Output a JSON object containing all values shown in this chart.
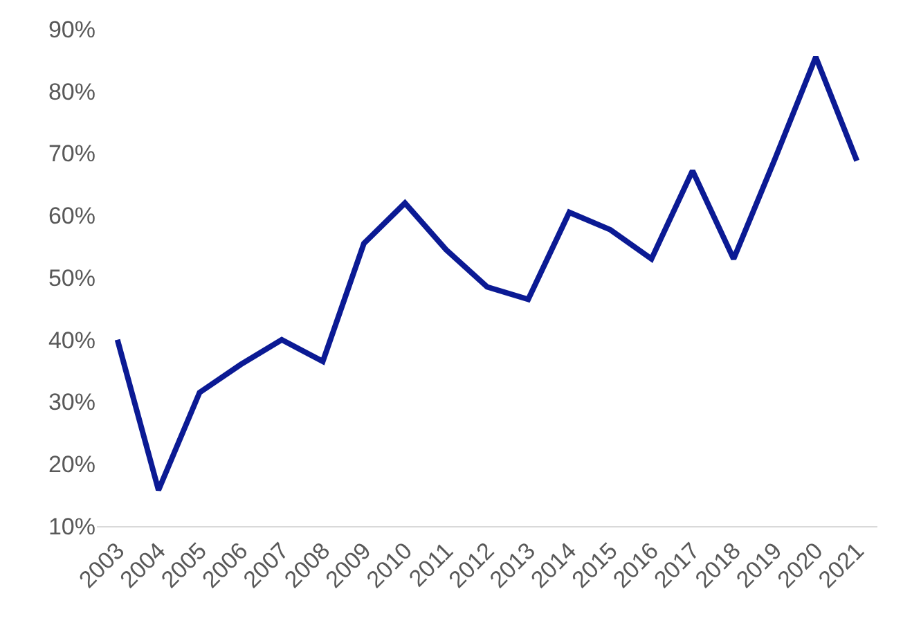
{
  "chart_data": {
    "type": "line",
    "categories": [
      "2003",
      "2004",
      "2005",
      "2006",
      "2007",
      "2008",
      "2009",
      "2010",
      "2011",
      "2012",
      "2013",
      "2014",
      "2015",
      "2016",
      "2017",
      "2018",
      "2019",
      "2020",
      "2021"
    ],
    "series": [
      {
        "color": "#0b1a94",
        "values": [
          40,
          15.8,
          31.5,
          36,
          40,
          36.5,
          55.5,
          62,
          54.5,
          48.5,
          46.5,
          60.5,
          57.7,
          53,
          67.2,
          53,
          69,
          85.5,
          68.8
        ]
      }
    ],
    "ylim": [
      10,
      90
    ],
    "yticks": [
      {
        "value": 10,
        "label": "10%"
      },
      {
        "value": 20,
        "label": "20%"
      },
      {
        "value": 30,
        "label": "30%"
      },
      {
        "value": 40,
        "label": "40%"
      },
      {
        "value": 50,
        "label": "50%"
      },
      {
        "value": 60,
        "label": "60%"
      },
      {
        "value": 70,
        "label": "70%"
      },
      {
        "value": 80,
        "label": "80%"
      },
      {
        "value": 90,
        "label": "90%"
      }
    ],
    "legend": false,
    "marker": "none",
    "line_style": "solid"
  }
}
